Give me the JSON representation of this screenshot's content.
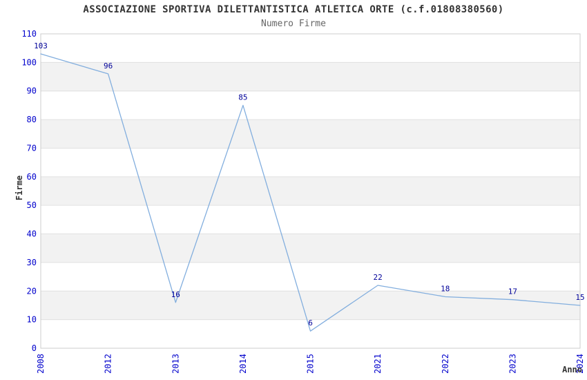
{
  "chart_data": {
    "type": "line",
    "title": "ASSOCIAZIONE SPORTIVA DILETTANTISTICA ATLETICA ORTE (c.f.01808380560)",
    "subtitle": "Numero Firme",
    "xlabel": "Anno",
    "ylabel": "Firme",
    "categories": [
      "2008",
      "2012",
      "2013",
      "2014",
      "2015",
      "2021",
      "2022",
      "2023",
      "2024"
    ],
    "values": [
      103,
      96,
      16,
      85,
      6,
      22,
      18,
      17,
      15
    ],
    "ylim": [
      0,
      110
    ],
    "ytick_step": 10,
    "grid": true,
    "banded_rows": true,
    "legend_position": "none",
    "colors": {
      "line": "#82aede",
      "point_label": "#000099",
      "tick_label": "#0000cc",
      "title": "#333333",
      "subtitle": "#666666",
      "axis_label": "#333333",
      "band": "#f2f2f2",
      "gridline": "#e0e0e0",
      "plot_border": "#cccccc",
      "background": "#ffffff"
    }
  }
}
